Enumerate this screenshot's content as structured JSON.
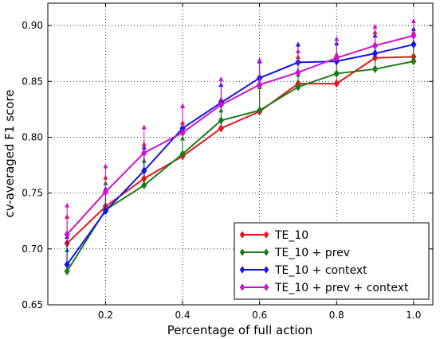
{
  "chart_data": {
    "type": "line",
    "xlabel": "Percentage of full action",
    "ylabel": "cv-averaged F1 score",
    "xlim": [
      0.05,
      1.05
    ],
    "ylim": [
      0.65,
      0.92
    ],
    "xticks": [
      0.2,
      0.4,
      0.6,
      0.8,
      1.0
    ],
    "xtick_labels": [
      "0.2",
      "0.4",
      "0.6",
      "0.8",
      "1.0"
    ],
    "yticks": [
      0.65,
      0.7,
      0.75,
      0.8,
      0.85,
      0.9
    ],
    "ytick_labels": [
      "0.65",
      "0.70",
      "0.75",
      "0.80",
      "0.85",
      "0.90"
    ],
    "grid": true,
    "legend_position": "lower-right",
    "x": [
      0.1,
      0.2,
      0.3,
      0.4,
      0.5,
      0.6,
      0.7,
      0.8,
      0.9,
      1.0
    ],
    "series": [
      {
        "name": "TE_10",
        "color": "#e8141e",
        "values": [
          0.705,
          0.738,
          0.763,
          0.783,
          0.808,
          0.823,
          0.848,
          0.848,
          0.871,
          0.872
        ],
        "err": [
          0.73,
          0.765,
          0.795,
          0.814,
          0.835,
          0.848,
          0.873,
          0.875,
          0.895,
          0.895
        ]
      },
      {
        "name": "TE_10 + prev",
        "color": "#1a7d1a",
        "values": [
          0.68,
          0.735,
          0.757,
          0.785,
          0.815,
          0.824,
          0.845,
          0.857,
          0.861,
          0.868
        ],
        "err": [
          0.7,
          0.76,
          0.78,
          0.8,
          0.825,
          0.846,
          0.857,
          0.872,
          0.878,
          0.885
        ]
      },
      {
        "name": "TE_10 + context",
        "color": "#1414e8",
        "values": [
          0.686,
          0.734,
          0.77,
          0.808,
          0.831,
          0.853,
          0.867,
          0.868,
          0.875,
          0.883
        ],
        "err": [
          0.712,
          0.755,
          0.792,
          0.829,
          0.848,
          0.869,
          0.884,
          0.885,
          0.892,
          0.898
        ]
      },
      {
        "name": "TE_10 + prev + context",
        "color": "#cc14cc",
        "values": [
          0.713,
          0.751,
          0.786,
          0.804,
          0.829,
          0.847,
          0.858,
          0.871,
          0.882,
          0.891
        ],
        "err": [
          0.74,
          0.775,
          0.81,
          0.829,
          0.853,
          0.87,
          0.878,
          0.889,
          0.9,
          0.905
        ]
      }
    ]
  }
}
